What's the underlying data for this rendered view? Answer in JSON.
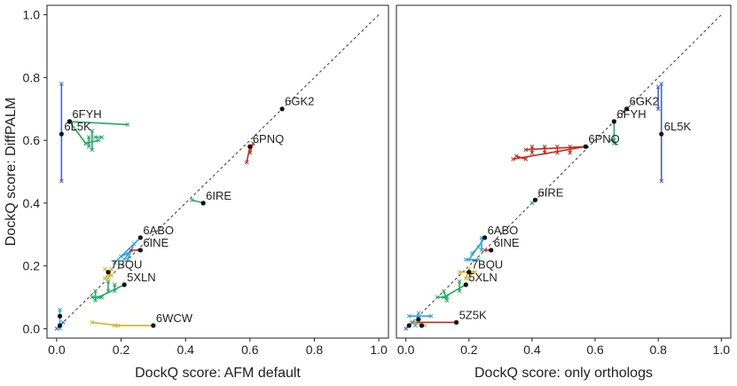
{
  "chart_data": [
    {
      "type": "scatter",
      "id": "afm",
      "xlabel": "DockQ score: AFM default",
      "ylabel": "DockQ score: DiffPALM",
      "xlim": [
        -0.03,
        1.03
      ],
      "ylim": [
        -0.03,
        1.03
      ],
      "xticks": [
        "0.0",
        "0.2",
        "0.4",
        "0.6",
        "0.8",
        "1.0"
      ],
      "yticks": [
        "0.0",
        "0.2",
        "0.4",
        "0.6",
        "0.8",
        "1.0"
      ],
      "diagonal": true,
      "points": [
        {
          "label": "6GK2",
          "x": 0.7,
          "y": 0.7,
          "color": "#3a3a3a",
          "segs": []
        },
        {
          "label": "6FYH",
          "x": 0.04,
          "y": 0.66,
          "color": "#1fae5e",
          "segs": [
            [
              0.04,
              0.66,
              0.22,
              0.65
            ],
            [
              0.04,
              0.66,
              0.09,
              0.59
            ],
            [
              0.09,
              0.59,
              0.13,
              0.6
            ],
            [
              0.11,
              0.63,
              0.11,
              0.57
            ],
            [
              0.12,
              0.61,
              0.14,
              0.61
            ],
            [
              0.1,
              0.61,
              0.1,
              0.58
            ]
          ]
        },
        {
          "label": "6L5K",
          "x": 0.015,
          "y": 0.62,
          "color": "#4466d0",
          "segs": [
            [
              0.015,
              0.47,
              0.015,
              0.78
            ]
          ]
        },
        {
          "label": "6PNQ",
          "x": 0.6,
          "y": 0.58,
          "color": "#cc2b1f",
          "segs": [
            [
              0.59,
              0.53,
              0.6,
              0.58
            ],
            [
              0.6,
              0.56,
              0.61,
              0.59
            ]
          ]
        },
        {
          "label": "6IRE",
          "x": 0.455,
          "y": 0.4,
          "color": "#1fae5e",
          "segs": [
            [
              0.42,
              0.41,
              0.455,
              0.4
            ]
          ]
        },
        {
          "label": "6ABO",
          "x": 0.26,
          "y": 0.29,
          "color": "#29a7e0",
          "segs": [
            [
              0.18,
              0.21,
              0.26,
              0.29
            ],
            [
              0.2,
              0.23,
              0.22,
              0.24
            ],
            [
              0.21,
              0.22,
              0.23,
              0.25
            ],
            [
              0.22,
              0.22,
              0.24,
              0.27
            ]
          ]
        },
        {
          "label": "6INE",
          "x": 0.26,
          "y": 0.25,
          "color": "#cc2b1f",
          "segs": [
            [
              0.23,
              0.25,
              0.26,
              0.25
            ]
          ]
        },
        {
          "label": "7BQU",
          "x": 0.16,
          "y": 0.18,
          "color": "#d8b41b",
          "segs": [
            [
              0.15,
              0.16,
              0.17,
              0.19
            ],
            [
              0.15,
              0.19,
              0.17,
              0.17
            ],
            [
              0.16,
              0.16,
              0.17,
              0.19
            ]
          ]
        },
        {
          "label": "5XLN",
          "x": 0.21,
          "y": 0.14,
          "color": "#1fae5e",
          "segs": [
            [
              0.13,
              0.1,
              0.21,
              0.14
            ],
            [
              0.11,
              0.1,
              0.14,
              0.1
            ],
            [
              0.12,
              0.12,
              0.12,
              0.09
            ],
            [
              0.16,
              0.15,
              0.16,
              0.12
            ],
            [
              0.18,
              0.14,
              0.18,
              0.12
            ]
          ]
        },
        {
          "label": "6WCW",
          "x": 0.3,
          "y": 0.01,
          "color": "#d8b41b",
          "segs": [
            [
              0.11,
              0.02,
              0.19,
              0.01
            ],
            [
              0.18,
              0.01,
              0.3,
              0.01
            ]
          ]
        },
        {
          "label": "",
          "x": 0.01,
          "y": 0.04,
          "color": "#29a7e0",
          "segs": [
            [
              0.01,
              0.0,
              0.01,
              0.06
            ]
          ]
        },
        {
          "label": "",
          "x": 0.01,
          "y": 0.01,
          "color": "#4466d0",
          "segs": [
            [
              0.0,
              0.0,
              0.02,
              0.02
            ]
          ]
        }
      ]
    },
    {
      "type": "scatter",
      "id": "orthologs",
      "xlabel": "DockQ score: only orthologs",
      "ylabel": "",
      "xlim": [
        -0.03,
        1.03
      ],
      "ylim": [
        -0.03,
        1.03
      ],
      "xticks": [
        "0.0",
        "0.2",
        "0.4",
        "0.6",
        "0.8",
        "1.0"
      ],
      "yticks": [],
      "diagonal": true,
      "points": [
        {
          "label": "6GK2",
          "x": 0.7,
          "y": 0.7,
          "color": "#3a3a3a",
          "segs": [
            [
              0.69,
              0.69,
              0.7,
              0.7
            ]
          ]
        },
        {
          "label": "6FYH",
          "x": 0.66,
          "y": 0.66,
          "color": "#1fae5e",
          "segs": [
            [
              0.66,
              0.66,
              0.66,
              0.59
            ],
            [
              0.65,
              0.6,
              0.66,
              0.6
            ]
          ]
        },
        {
          "label": "6L5K",
          "x": 0.81,
          "y": 0.62,
          "color": "#4466d0",
          "segs": [
            [
              0.81,
              0.47,
              0.81,
              0.78
            ],
            [
              0.8,
              0.7,
              0.8,
              0.77
            ]
          ]
        },
        {
          "label": "6PNQ",
          "x": 0.57,
          "y": 0.58,
          "color": "#cc2b1f",
          "segs": [
            [
              0.34,
              0.54,
              0.57,
              0.58
            ],
            [
              0.38,
              0.57,
              0.57,
              0.58
            ],
            [
              0.35,
              0.55,
              0.38,
              0.54
            ],
            [
              0.4,
              0.58,
              0.4,
              0.56
            ],
            [
              0.44,
              0.58,
              0.44,
              0.56
            ],
            [
              0.48,
              0.58,
              0.48,
              0.56
            ],
            [
              0.52,
              0.58,
              0.52,
              0.56
            ]
          ]
        },
        {
          "label": "6IRE",
          "x": 0.41,
          "y": 0.41,
          "color": "#1fae5e",
          "segs": [
            [
              0.4,
              0.4,
              0.41,
              0.41
            ]
          ]
        },
        {
          "label": "6ABO",
          "x": 0.25,
          "y": 0.29,
          "color": "#29a7e0",
          "segs": [
            [
              0.2,
              0.22,
              0.25,
              0.29
            ],
            [
              0.21,
              0.24,
              0.23,
              0.26
            ],
            [
              0.24,
              0.25,
              0.24,
              0.29
            ],
            [
              0.19,
              0.22,
              0.23,
              0.22
            ]
          ]
        },
        {
          "label": "6INE",
          "x": 0.27,
          "y": 0.25,
          "color": "#cc2b1f",
          "segs": [
            [
              0.25,
              0.25,
              0.27,
              0.25
            ]
          ]
        },
        {
          "label": "7BQU",
          "x": 0.2,
          "y": 0.18,
          "color": "#d8b41b",
          "segs": [
            [
              0.17,
              0.18,
              0.22,
              0.18
            ],
            [
              0.19,
              0.16,
              0.2,
              0.19
            ],
            [
              0.2,
              0.16,
              0.21,
              0.18
            ]
          ]
        },
        {
          "label": "5XLN",
          "x": 0.19,
          "y": 0.14,
          "color": "#1fae5e",
          "segs": [
            [
              0.12,
              0.1,
              0.19,
              0.14
            ],
            [
              0.12,
              0.12,
              0.13,
              0.09
            ],
            [
              0.17,
              0.15,
              0.17,
              0.12
            ],
            [
              0.1,
              0.1,
              0.13,
              0.1
            ]
          ]
        },
        {
          "label": "5Z5K",
          "x": 0.16,
          "y": 0.02,
          "color": "#cc2b1f",
          "segs": [
            [
              0.02,
              0.02,
              0.16,
              0.02
            ]
          ]
        },
        {
          "label": "",
          "x": 0.04,
          "y": 0.03,
          "color": "#29a7e0",
          "segs": [
            [
              0.01,
              0.04,
              0.08,
              0.04
            ],
            [
              0.03,
              0.01,
              0.04,
              0.05
            ]
          ]
        },
        {
          "label": "",
          "x": 0.05,
          "y": 0.01,
          "color": "#d8b41b",
          "segs": [
            [
              0.02,
              0.02,
              0.06,
              0.01
            ]
          ]
        },
        {
          "label": "",
          "x": 0.01,
          "y": 0.01,
          "color": "#4466d0",
          "segs": [
            [
              0.0,
              0.0,
              0.02,
              0.02
            ]
          ]
        }
      ]
    }
  ]
}
